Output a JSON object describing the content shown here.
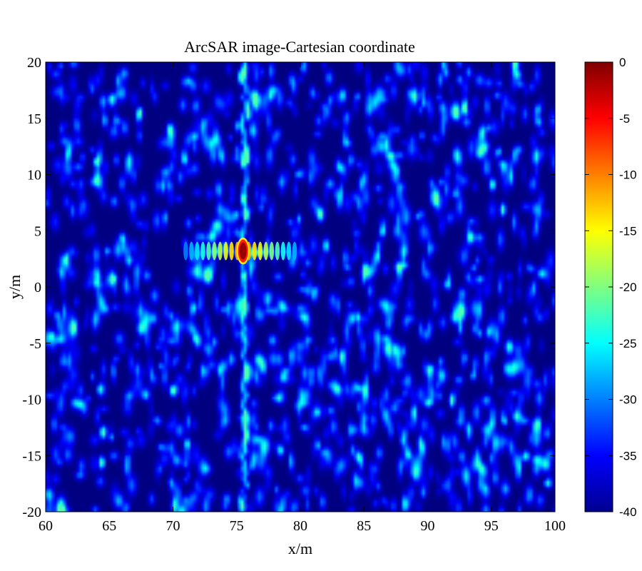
{
  "chart_data": {
    "type": "heatmap",
    "title": "ArcSAR image-Cartesian coordinate",
    "xlabel": "x/m",
    "ylabel": "y/m",
    "xlim": [
      60,
      100
    ],
    "ylim": [
      -20,
      20
    ],
    "xticks": [
      60,
      65,
      70,
      75,
      80,
      85,
      90,
      95,
      100
    ],
    "yticks": [
      20,
      15,
      10,
      5,
      0,
      -5,
      -10,
      -15,
      -20
    ],
    "colormap": "jet",
    "clim": [
      -40,
      0
    ],
    "colorbar_ticks": [
      0,
      -5,
      -10,
      -15,
      -20,
      -25,
      -30,
      -35,
      -40
    ],
    "peak": {
      "x": 75.5,
      "y": 3.2,
      "value": 0
    },
    "sidelobe_ridge": {
      "y": 3.2,
      "x_range": [
        71,
        80
      ]
    },
    "background_level": [
      -40,
      -25
    ],
    "hot_spots": [
      {
        "x": 92.8,
        "y": 16.0,
        "value": -22
      },
      {
        "x": 75.8,
        "y": 15.5,
        "value": -24
      },
      {
        "x": 91.8,
        "y": -10.0,
        "value": -25
      },
      {
        "x": 64.3,
        "y": -15.5,
        "value": -26
      },
      {
        "x": 95.8,
        "y": 7.0,
        "value": -26
      }
    ]
  }
}
